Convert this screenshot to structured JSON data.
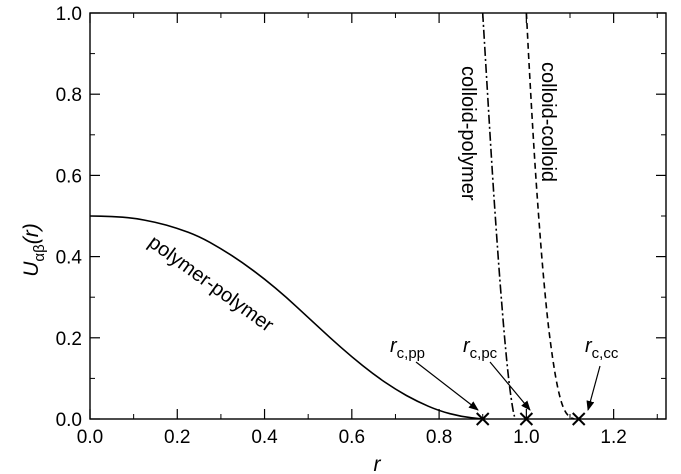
{
  "chart_data": {
    "type": "line",
    "title": "",
    "xlabel": "r",
    "ylabel": {
      "main": "U",
      "sub": "αβ",
      "arg": "(r)"
    },
    "xlim": [
      0.0,
      1.32
    ],
    "ylim": [
      0.0,
      1.0
    ],
    "xticks": [
      "0.0",
      "0.2",
      "0.4",
      "0.6",
      "0.8",
      "1.0",
      "1.2"
    ],
    "yticks": [
      "0.0",
      "0.2",
      "0.4",
      "0.6",
      "0.8",
      "1.0"
    ],
    "grid": false,
    "series": [
      {
        "name": "polymer-polymer",
        "style": "solid",
        "x": [
          0.0,
          0.05,
          0.1,
          0.15,
          0.2,
          0.25,
          0.3,
          0.35,
          0.4,
          0.45,
          0.5,
          0.55,
          0.6,
          0.65,
          0.7,
          0.75,
          0.8,
          0.85,
          0.9
        ],
        "y": [
          0.5,
          0.499,
          0.495,
          0.485,
          0.47,
          0.45,
          0.42,
          0.385,
          0.345,
          0.3,
          0.25,
          0.2,
          0.153,
          0.11,
          0.073,
          0.043,
          0.02,
          0.006,
          0.0
        ]
      },
      {
        "name": "colloid-polymer",
        "style": "dashdot",
        "x": [
          0.9,
          0.91,
          0.92,
          0.93,
          0.94,
          0.95,
          0.96,
          0.97,
          0.975
        ],
        "y": [
          1.0,
          0.82,
          0.64,
          0.48,
          0.33,
          0.2,
          0.09,
          0.015,
          0.0
        ]
      },
      {
        "name": "colloid-colloid",
        "style": "dashed",
        "x": [
          1.0,
          1.01,
          1.02,
          1.03,
          1.04,
          1.05,
          1.06,
          1.07,
          1.08,
          1.09,
          1.1,
          1.11
        ],
        "y": [
          1.0,
          0.8,
          0.62,
          0.47,
          0.34,
          0.23,
          0.15,
          0.085,
          0.04,
          0.015,
          0.004,
          0.0
        ]
      }
    ],
    "cutoffs": [
      {
        "label": "r",
        "sub": "c,pp",
        "x": 0.9,
        "y": 0.0
      },
      {
        "label": "r",
        "sub": "c,pc",
        "x": 1.0,
        "y": 0.0
      },
      {
        "label": "r",
        "sub": "c,cc",
        "x": 1.12,
        "y": 0.0
      }
    ]
  }
}
